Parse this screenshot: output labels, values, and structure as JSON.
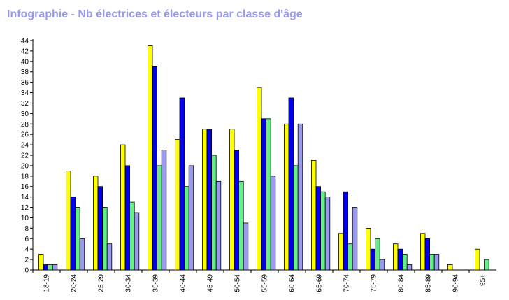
{
  "chart_data": {
    "type": "bar",
    "title": "Infographie - Nb électrices et électeurs par classe d'âge",
    "categories": [
      "18-19",
      "20-24",
      "25-29",
      "30-34",
      "35-39",
      "40-44",
      "45-49",
      "50-54",
      "55-59",
      "60-64",
      "65-69",
      "70-74",
      "75-79",
      "80-84",
      "85-89",
      "90-94",
      "95+"
    ],
    "series": [
      {
        "color": "#ffff00",
        "values": [
          3,
          19,
          18,
          24,
          43,
          25,
          27,
          27,
          35,
          28,
          21,
          7,
          8,
          5,
          7,
          1,
          4
        ]
      },
      {
        "color": "#0000ee",
        "values": [
          1,
          14,
          16,
          20,
          39,
          33,
          27,
          23,
          29,
          33,
          16,
          15,
          4,
          4,
          6,
          0,
          0
        ]
      },
      {
        "color": "#66ee88",
        "values": [
          1,
          12,
          12,
          13,
          20,
          16,
          22,
          17,
          29,
          20,
          15,
          5,
          6,
          3,
          3,
          0,
          2
        ]
      },
      {
        "color": "#9999ee",
        "values": [
          1,
          6,
          5,
          11,
          23,
          20,
          17,
          9,
          18,
          28,
          14,
          12,
          2,
          1,
          3,
          0,
          0
        ]
      }
    ],
    "ylim": [
      0,
      44
    ],
    "yticks": [
      0,
      2,
      4,
      6,
      8,
      10,
      12,
      14,
      16,
      18,
      20,
      22,
      24,
      26,
      28,
      30,
      32,
      34,
      36,
      38,
      40,
      42,
      44
    ],
    "grid": false,
    "legend": "none"
  }
}
